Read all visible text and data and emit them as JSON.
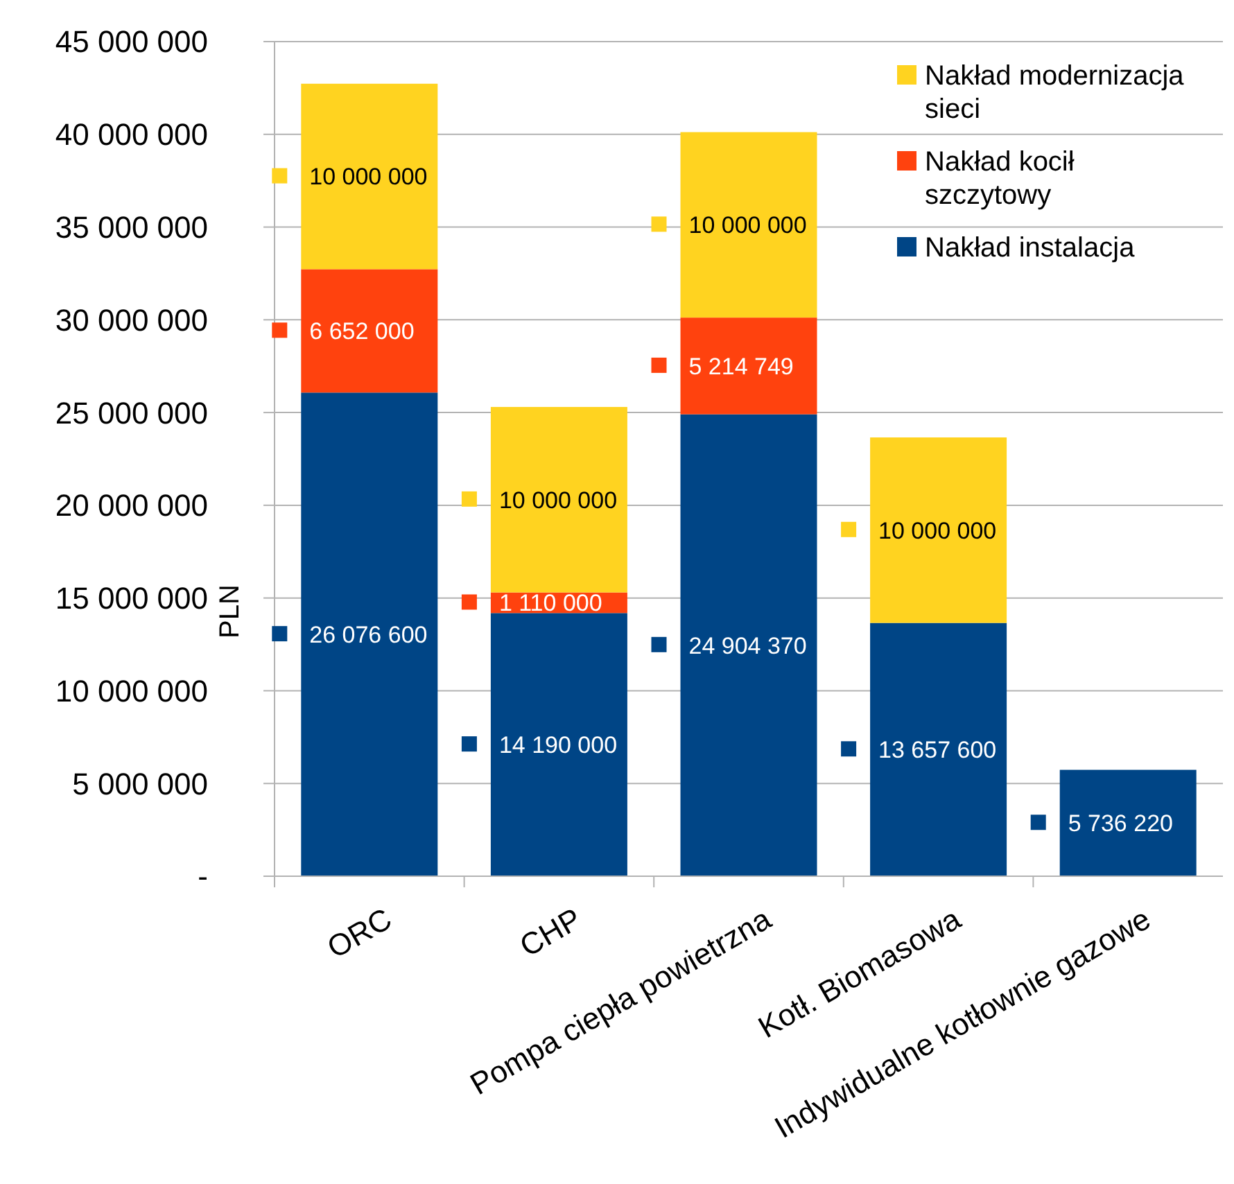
{
  "chart_data": {
    "type": "bar",
    "stacked": true,
    "ylabel": "PLN",
    "categories": [
      "ORC",
      "CHP",
      "Pompa ciepła powietrzna",
      "Kotł. Biomasowa",
      "Indywidualne kotłownie gazowe"
    ],
    "series": [
      {
        "name": "Nakład instalacja",
        "color": "#004586",
        "values": [
          26076600,
          14190000,
          24904370,
          13657600,
          5736220
        ],
        "value_labels": [
          "26 076 600",
          "14 190 000",
          "24 904 370",
          "13 657 600",
          "5 736 220"
        ]
      },
      {
        "name": "Nakład kocił szczytowy",
        "color": "#ff420e",
        "values": [
          6652000,
          1110000,
          5214749,
          null,
          null
        ],
        "value_labels": [
          "6 652 000",
          "1 110 000",
          "5 214 749",
          null,
          null
        ]
      },
      {
        "name": "Nakład modernizacja sieci",
        "color": "#ffd320",
        "values": [
          10000000,
          10000000,
          10000000,
          10000000,
          null
        ],
        "value_labels": [
          "10 000 000",
          "10 000 000",
          "10 000 000",
          "10 000 000",
          null
        ]
      }
    ],
    "ylim": [
      0,
      45000000
    ],
    "yticks": [
      {
        "value": 0,
        "label": "-"
      },
      {
        "value": 5000000,
        "label": "5 000 000"
      },
      {
        "value": 10000000,
        "label": "10 000 000"
      },
      {
        "value": 15000000,
        "label": "15 000 000"
      },
      {
        "value": 20000000,
        "label": "20 000 000"
      },
      {
        "value": 25000000,
        "label": "25 000 000"
      },
      {
        "value": 30000000,
        "label": "30 000 000"
      },
      {
        "value": 35000000,
        "label": "35 000 000"
      },
      {
        "value": 40000000,
        "label": "40 000 000"
      },
      {
        "value": 45000000,
        "label": "45 000 000"
      }
    ],
    "grid": "y",
    "legend": "top right"
  }
}
